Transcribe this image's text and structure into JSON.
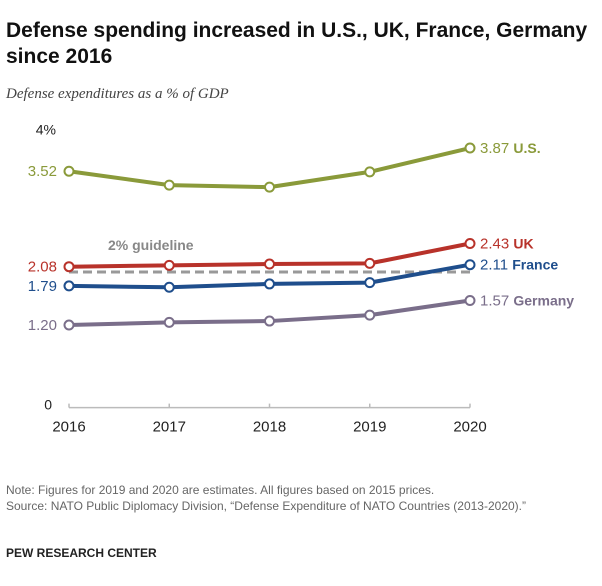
{
  "title": "Defense spending increased in U.S., UK, France, Germany since 2016",
  "subtitle": "Defense expenditures as a % of GDP",
  "note": "Note: Figures for 2019 and 2020 are estimates. All figures based on 2015 prices.",
  "source": "Source: NATO Public Diplomacy Division, “Defense Expenditure of NATO Countries (2013-2020).”",
  "brand": "PEW RESEARCH CENTER",
  "chart_data": {
    "type": "line",
    "title": "Defense spending increased in U.S., UK, France, Germany since 2016",
    "ylabel": "Defense expenditures as a % of GDP",
    "x": [
      "2016",
      "2017",
      "2018",
      "2019",
      "2020"
    ],
    "ylim": [
      0,
      4
    ],
    "yticks": [
      {
        "value": 0,
        "label": "0"
      },
      {
        "value": 4,
        "label": "4%"
      }
    ],
    "grid": false,
    "series": [
      {
        "name": "U.S.",
        "color": "#8a9a3a",
        "values": [
          3.52,
          3.31,
          3.28,
          3.51,
          3.87
        ],
        "start_label": "3.52",
        "end_label": "3.87"
      },
      {
        "name": "UK",
        "color": "#b8322a",
        "values": [
          2.08,
          2.1,
          2.12,
          2.13,
          2.43
        ],
        "start_label": "2.08",
        "end_label": "2.43"
      },
      {
        "name": "France",
        "color": "#1f4e8c",
        "values": [
          1.79,
          1.77,
          1.82,
          1.84,
          2.11
        ],
        "start_label": "1.79",
        "end_label": "2.11"
      },
      {
        "name": "Germany",
        "color": "#7a6e8a",
        "values": [
          1.2,
          1.24,
          1.26,
          1.35,
          1.57
        ],
        "start_label": "1.20",
        "end_label": "1.57"
      }
    ],
    "reference_line": {
      "value": 2,
      "label": "2% guideline",
      "color": "#999999"
    }
  }
}
